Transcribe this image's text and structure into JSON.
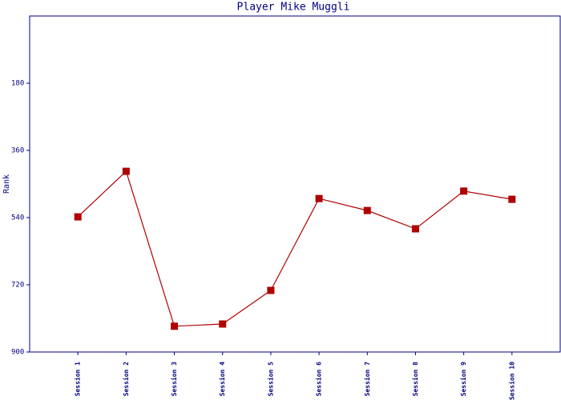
{
  "chart_data": {
    "type": "line",
    "title": "Player Mike Muggli",
    "y_label": "Rank",
    "categories": [
      "Session 1",
      "Session 2",
      "Session 3",
      "Session 4",
      "Session 5",
      "Session 6",
      "Session 7",
      "Session 8",
      "Session 9",
      "Session 10"
    ],
    "series": [
      {
        "color": "#b00000",
        "values": [
          538,
          416,
          831,
          825,
          735,
          489,
          521,
          570,
          469,
          491
        ]
      }
    ],
    "ylim": [
      900,
      0
    ],
    "yticks": [
      180,
      360,
      540,
      720,
      900
    ],
    "grid": false
  }
}
